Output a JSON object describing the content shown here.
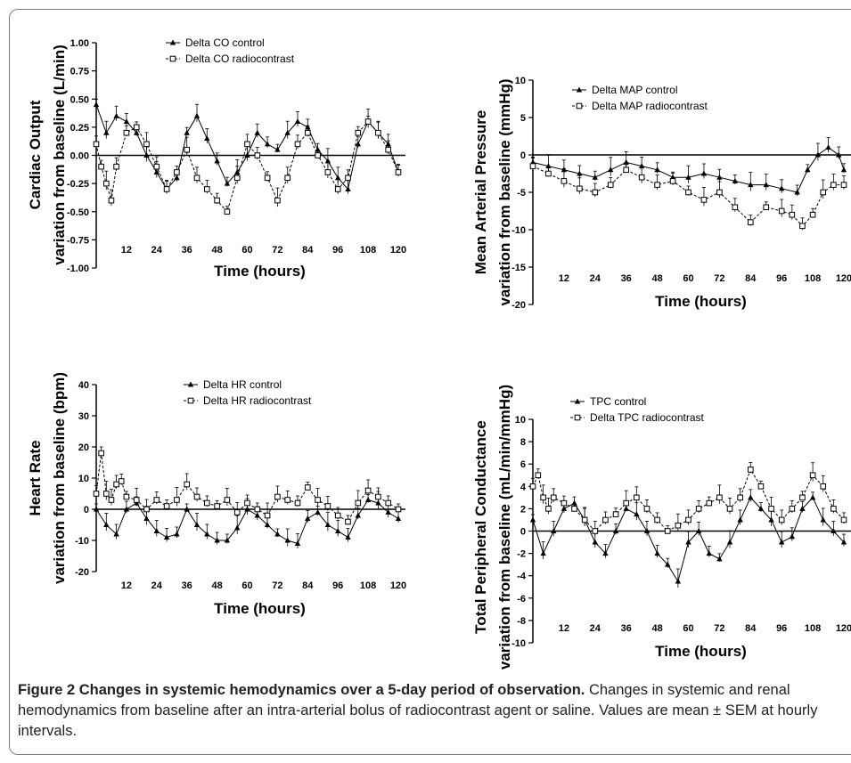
{
  "caption": {
    "title": "Figure 2 Changes in systemic hemodynamics over a 5-day period of observation.",
    "body": " Changes in systemic and renal hemodynamics from baseline after an intra-arterial bolus of radiocontrast agent or saline. Values are mean ± SEM at hourly intervals."
  },
  "chart_data": [
    {
      "type": "line",
      "ylabel": "Cardiac Output",
      "ylabel2": "variation from baseline (L/min)",
      "xlabel": "Time (hours)",
      "ylim": [
        -1.0,
        1.0
      ],
      "xlim": [
        0,
        120
      ],
      "y_ticks": [
        "1.00",
        "0.75",
        "0.50",
        "0.25",
        "0.00",
        "-0.25",
        "-0.50",
        "-0.75",
        "-1.00"
      ],
      "y_tick_values": [
        1.0,
        0.75,
        0.5,
        0.25,
        0,
        -0.25,
        -0.5,
        -0.75,
        -1.0
      ],
      "x_ticks": [
        "12",
        "24",
        "36",
        "48",
        "60",
        "72",
        "84",
        "96",
        "108",
        "120"
      ],
      "x_tick_values": [
        12,
        24,
        36,
        48,
        60,
        72,
        84,
        96,
        108,
        120
      ],
      "legend_position": "top",
      "series": [
        {
          "name": "Delta CO control",
          "marker": "triangle-filled",
          "x": [
            0,
            4,
            8,
            12,
            16,
            20,
            24,
            28,
            32,
            36,
            40,
            44,
            48,
            52,
            56,
            60,
            64,
            68,
            72,
            76,
            80,
            84,
            88,
            92,
            96,
            100,
            104,
            108,
            112,
            116,
            120
          ],
          "y": [
            0.45,
            0.2,
            0.35,
            0.3,
            0.2,
            0.0,
            -0.15,
            -0.3,
            -0.2,
            0.2,
            0.35,
            0.15,
            -0.05,
            -0.25,
            -0.15,
            0.0,
            0.2,
            0.1,
            0.05,
            0.2,
            0.3,
            0.25,
            0.05,
            -0.05,
            -0.2,
            -0.3,
            0.1,
            0.3,
            0.2,
            0.1,
            -0.15
          ]
        },
        {
          "name": "Delta CO radiocontrast",
          "marker": "square-open",
          "x": [
            0,
            2,
            4,
            6,
            8,
            12,
            16,
            20,
            24,
            28,
            32,
            36,
            40,
            44,
            48,
            52,
            56,
            60,
            64,
            68,
            72,
            76,
            80,
            84,
            88,
            92,
            96,
            100,
            104,
            108,
            112,
            116,
            120
          ],
          "y": [
            0.1,
            -0.1,
            -0.25,
            -0.4,
            -0.1,
            0.2,
            0.25,
            0.1,
            -0.1,
            -0.3,
            -0.15,
            0.05,
            -0.2,
            -0.3,
            -0.4,
            -0.5,
            -0.2,
            0.1,
            0.0,
            -0.2,
            -0.4,
            -0.2,
            0.1,
            0.2,
            0.0,
            -0.15,
            -0.3,
            -0.2,
            0.2,
            0.3,
            0.2,
            0.05,
            -0.15
          ]
        }
      ]
    },
    {
      "type": "line",
      "ylabel": "Mean Arterial Pressure",
      "ylabel2": "variation from baseline (mmHg)",
      "xlabel": "Time (hours)",
      "ylim": [
        -20,
        10
      ],
      "xlim": [
        0,
        120
      ],
      "y_ticks": [
        "10",
        "5",
        "0",
        "-5",
        "-10",
        "-15",
        "-20"
      ],
      "y_tick_values": [
        10,
        5,
        0,
        -5,
        -10,
        -15,
        -20
      ],
      "x_ticks": [
        "12",
        "24",
        "36",
        "48",
        "60",
        "72",
        "84",
        "96",
        "108",
        "120"
      ],
      "x_tick_values": [
        12,
        24,
        36,
        48,
        60,
        72,
        84,
        96,
        108,
        120
      ],
      "legend_position": "top",
      "series": [
        {
          "name": "Delta MAP control",
          "marker": "triangle-filled",
          "x": [
            0,
            6,
            12,
            18,
            24,
            30,
            36,
            42,
            48,
            54,
            60,
            66,
            72,
            78,
            84,
            90,
            96,
            102,
            106,
            110,
            114,
            118,
            120
          ],
          "y": [
            -1,
            -1.5,
            -2,
            -2.5,
            -3,
            -2,
            -1,
            -1.5,
            -2,
            -3,
            -3,
            -2.5,
            -3,
            -3.5,
            -4,
            -4,
            -4.5,
            -5,
            -2,
            0,
            1,
            0,
            -2
          ]
        },
        {
          "name": "Delta MAP radiocontrast",
          "marker": "square-open",
          "x": [
            0,
            6,
            12,
            18,
            24,
            30,
            36,
            42,
            48,
            54,
            60,
            66,
            72,
            78,
            84,
            90,
            96,
            100,
            104,
            108,
            112,
            116,
            120
          ],
          "y": [
            -1.5,
            -2.5,
            -3.5,
            -4.5,
            -5,
            -4,
            -2,
            -3,
            -4,
            -3.5,
            -5,
            -6,
            -5,
            -7,
            -9,
            -7,
            -7.5,
            -8,
            -9.5,
            -8,
            -5,
            -4,
            -4
          ]
        }
      ]
    },
    {
      "type": "line",
      "ylabel": "Heart Rate",
      "ylabel2": "variation from baseline (bpm)",
      "xlabel": "Time (hours)",
      "ylim": [
        -20,
        40
      ],
      "xlim": [
        0,
        120
      ],
      "y_ticks": [
        "40",
        "30",
        "20",
        "10",
        "0",
        "-10",
        "-20"
      ],
      "y_tick_values": [
        40,
        30,
        20,
        10,
        0,
        -10,
        -20
      ],
      "x_ticks": [
        "12",
        "24",
        "36",
        "48",
        "60",
        "72",
        "84",
        "96",
        "108",
        "120"
      ],
      "x_tick_values": [
        12,
        24,
        36,
        48,
        60,
        72,
        84,
        96,
        108,
        120
      ],
      "legend_position": "top",
      "series": [
        {
          "name": "Delta HR control",
          "marker": "triangle-filled",
          "x": [
            0,
            4,
            8,
            12,
            16,
            20,
            24,
            28,
            32,
            36,
            40,
            44,
            48,
            52,
            56,
            60,
            64,
            68,
            72,
            76,
            80,
            84,
            88,
            92,
            96,
            100,
            104,
            108,
            112,
            116,
            120
          ],
          "y": [
            0,
            -5,
            -8,
            0,
            2,
            -3,
            -7,
            -9,
            -8,
            0,
            -5,
            -8,
            -10,
            -10,
            -6,
            0,
            -2,
            -5,
            -8,
            -10,
            -11,
            -3,
            -1,
            -5,
            -7,
            -9,
            -2,
            3,
            2,
            -1,
            -3
          ]
        },
        {
          "name": "Delta HR radiocontrast",
          "marker": "square-open",
          "x": [
            0,
            2,
            4,
            6,
            8,
            10,
            12,
            16,
            20,
            24,
            28,
            32,
            36,
            40,
            44,
            48,
            52,
            56,
            60,
            64,
            68,
            72,
            76,
            80,
            84,
            88,
            92,
            96,
            100,
            104,
            108,
            112,
            116,
            120
          ],
          "y": [
            5,
            18,
            5,
            3,
            8,
            9,
            4,
            3,
            0,
            3,
            1,
            3,
            8,
            4,
            2,
            1,
            3,
            -1,
            2,
            0,
            -2,
            4,
            3,
            2,
            7,
            3,
            1,
            -2,
            -4,
            2,
            6,
            4,
            2,
            0
          ]
        }
      ]
    },
    {
      "type": "line",
      "ylabel": "Total Peripheral Conductance",
      "ylabel2": "variation from baseline (mL/min/mmHg)",
      "xlabel": "Time (hours)",
      "ylim": [
        -10,
        10
      ],
      "xlim": [
        0,
        120
      ],
      "y_ticks": [
        "10",
        "8",
        "6",
        "4",
        "2",
        "0",
        "-2",
        "-4",
        "-6",
        "-8",
        "-10"
      ],
      "y_tick_values": [
        10,
        8,
        6,
        4,
        2,
        0,
        -2,
        -4,
        -6,
        -8,
        -10
      ],
      "x_ticks": [
        "12",
        "24",
        "36",
        "48",
        "60",
        "72",
        "84",
        "96",
        "108",
        "120"
      ],
      "x_tick_values": [
        12,
        24,
        36,
        48,
        60,
        72,
        84,
        96,
        108,
        120
      ],
      "legend_position": "top",
      "series": [
        {
          "name": "TPC control",
          "marker": "triangle-filled",
          "x": [
            0,
            4,
            8,
            12,
            16,
            20,
            24,
            28,
            32,
            36,
            40,
            44,
            48,
            52,
            56,
            60,
            64,
            68,
            72,
            76,
            80,
            84,
            88,
            92,
            96,
            100,
            104,
            108,
            112,
            116,
            120
          ],
          "y": [
            1,
            -2,
            0,
            2,
            2.5,
            1,
            -1,
            -2,
            0,
            2,
            1.5,
            0,
            -2,
            -3,
            -4.5,
            -1,
            0,
            -2,
            -2.5,
            -1,
            1,
            3,
            2,
            1,
            -1,
            -0.5,
            2,
            3,
            1,
            0,
            -1
          ]
        },
        {
          "name": "Delta TPC radiocontrast",
          "marker": "square-open",
          "x": [
            0,
            2,
            4,
            6,
            8,
            12,
            16,
            20,
            24,
            28,
            32,
            36,
            40,
            44,
            48,
            52,
            56,
            60,
            64,
            68,
            72,
            76,
            80,
            84,
            88,
            92,
            96,
            100,
            104,
            108,
            112,
            116,
            120
          ],
          "y": [
            4,
            5,
            3,
            2,
            3,
            2.5,
            2,
            1,
            0,
            1,
            1.5,
            2.5,
            3,
            2,
            1,
            0,
            0.5,
            1,
            2,
            2.5,
            3,
            2,
            3,
            5.5,
            4,
            2,
            1,
            2,
            3,
            5,
            4,
            2,
            1
          ]
        }
      ]
    }
  ]
}
